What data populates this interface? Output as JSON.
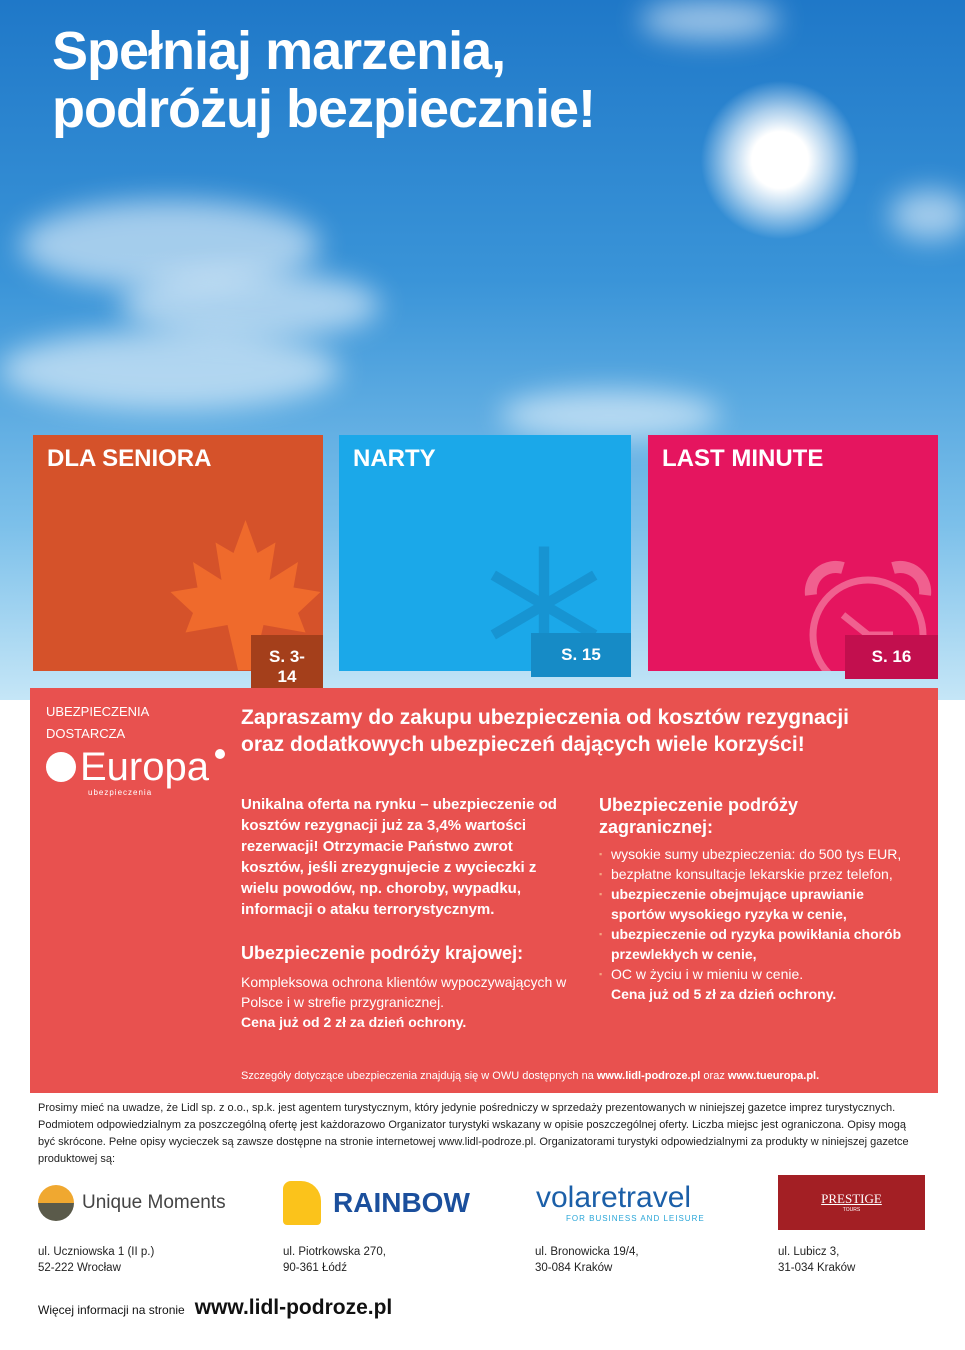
{
  "headline": {
    "line1": "Spełniaj marzenia,",
    "line2": "podróżuj bezpiecznie!"
  },
  "tiles": [
    {
      "title": "DLA SENIORA",
      "page": "S. 3-14",
      "color": "#d5522a",
      "badge_color": "#a43f1b",
      "icon": "maple-leaf-icon"
    },
    {
      "title": "NARTY",
      "page": "S. 15",
      "color": "#1ba8e9",
      "badge_color": "#168bc6",
      "icon": "snowflake-icon"
    },
    {
      "title": "LAST MINUTE",
      "page": "S. 16",
      "color": "#e5155f",
      "badge_color": "#c20f4e",
      "icon": "alarm-clock-icon"
    }
  ],
  "insurance": {
    "provider_label1": "UBEZPIECZENIA",
    "provider_label2": "DOSTARCZA",
    "logo_text": "Europa",
    "logo_sub": "ubezpieczenia",
    "title": "Zapraszamy do zakupu ubezpieczenia od kosztów rezygnacji oraz dodatkowych ubezpieczeń dających wiele korzyści!",
    "offer": "Unikalna oferta na rynku – ubezpieczenie od kosztów rezygnacji już za 3,4% wartości rezerwacji! Otrzymacie Państwo zwrot kosztów, jeśli zrezygnujecie z wycieczki z wielu powodów, np. choroby, wypadku, informacji o ataku terrorystycznym.",
    "domestic_title": "Ubezpieczenie podróży krajowej:",
    "domestic_text": "Kompleksowa ochrona klientów wypoczywających w Polsce i w strefie przygranicznej.",
    "domestic_price": "Cena już od 2 zł za dzień ochrony.",
    "foreign_title": "Ubezpieczenie podróży zagranicznej:",
    "foreign_items": [
      {
        "text": "wysokie sumy ubezpieczenia: do 500 tys EUR,",
        "bold": false
      },
      {
        "text": "bezpłatne konsultacje lekarskie przez telefon,",
        "bold": false
      },
      {
        "text": "ubezpieczenie obejmujące uprawianie sportów wysokiego ryzyka w cenie,",
        "bold": true
      },
      {
        "text": "ubezpieczenie od ryzyka powikłania chorób przewlekłych w cenie,",
        "bold": true
      },
      {
        "text": "OC w życiu i w mieniu w cenie.",
        "bold": false
      }
    ],
    "foreign_price": "Cena już od 5 zł za dzień ochrony.",
    "footer_pre": "Szczegóły dotyczące ubezpieczenia znajdują się w OWU dostępnych na",
    "footer_link1": "www.lidl-podroze.pl",
    "footer_mid": "oraz",
    "footer_link2": "www.tueuropa.pl."
  },
  "disclaimer": "Prosimy mieć na uwadze, że Lidl sp. z o.o., sp.k. jest agentem turystycznym, który jedynie pośredniczy w sprzedaży prezentowanych w niniejszej gazetce imprez turystycznych. Podmiotem odpowiedzialnym za poszczególną ofertę jest każdorazowo Organizator turystyki wskazany w opisie poszczególnej oferty. Liczba miejsc jest ograniczona. Opisy mogą być skrócone. Pełne opisy wycieczek są zawsze dostępne na stronie internetowej www.lidl-podroze.pl. Organizatorami turystyki odpowiedzialnymi za produkty w niniejszej gazetce produktowej są:",
  "organizers": [
    {
      "name": "Unique Moments",
      "addr1": "ul. Uczniowska 1 (II p.)",
      "addr2": "52-222 Wrocław"
    },
    {
      "name": "RAINBOW",
      "addr1": "ul. Piotrkowska 270,",
      "addr2": "90-361 Łódź"
    },
    {
      "name": "volaretravel",
      "tagline": "FOR BUSINESS AND LEISURE",
      "addr1": "ul. Bronowicka 19/4,",
      "addr2": "30-084 Kraków"
    },
    {
      "name": "PRESTIGE",
      "tagline": "TOURS",
      "addr1": "ul. Lubicz 3,",
      "addr2": "31-034 Kraków"
    }
  ],
  "more_info": {
    "label": "Więcej informacji na stronie",
    "url": "www.lidl-podroze.pl"
  }
}
